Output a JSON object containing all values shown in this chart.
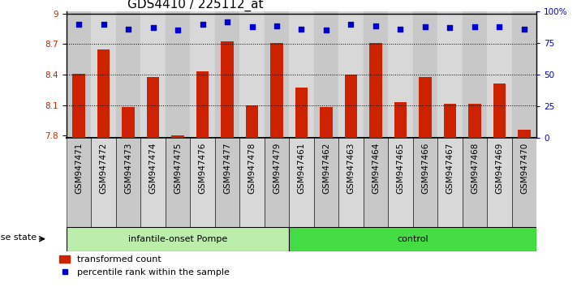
{
  "title": "GDS4410 / 225112_at",
  "samples": [
    "GSM947471",
    "GSM947472",
    "GSM947473",
    "GSM947474",
    "GSM947475",
    "GSM947476",
    "GSM947477",
    "GSM947478",
    "GSM947479",
    "GSM947461",
    "GSM947462",
    "GSM947463",
    "GSM947464",
    "GSM947465",
    "GSM947466",
    "GSM947467",
    "GSM947468",
    "GSM947469",
    "GSM947470"
  ],
  "bar_values": [
    8.41,
    8.65,
    8.08,
    8.38,
    7.8,
    8.43,
    8.73,
    8.1,
    8.71,
    8.27,
    8.08,
    8.4,
    8.71,
    8.13,
    8.38,
    8.11,
    8.11,
    8.31,
    7.86
  ],
  "dot_values": [
    8.89,
    8.89,
    8.85,
    8.86,
    8.84,
    8.89,
    8.92,
    8.87,
    8.88,
    8.85,
    8.84,
    8.89,
    8.88,
    8.85,
    8.87,
    8.86,
    8.87,
    8.87,
    8.85
  ],
  "ylim": [
    7.78,
    9.02
  ],
  "yticks": [
    7.8,
    8.1,
    8.4,
    8.7,
    9.0
  ],
  "ytick_labels": [
    "7.8",
    "8.1",
    "8.4",
    "8.7",
    "9"
  ],
  "right_yticks_pct": [
    0,
    25,
    50,
    75,
    100
  ],
  "right_ytick_labels": [
    "0",
    "25",
    "50",
    "75",
    "100%"
  ],
  "bar_color": "#cc2200",
  "dot_color": "#0000cc",
  "group1_label": "infantile-onset Pompe",
  "group2_label": "control",
  "group1_color": "#bbeeaa",
  "group2_color": "#44dd44",
  "group1_count": 9,
  "group2_count": 10,
  "disease_state_label": "disease state",
  "legend_bar_label": "transformed count",
  "legend_dot_label": "percentile rank within the sample",
  "tick_fontsize": 7.5,
  "label_fontsize": 8,
  "title_fontsize": 11,
  "cell_color_odd": "#c8c8c8",
  "cell_color_even": "#d8d8d8"
}
